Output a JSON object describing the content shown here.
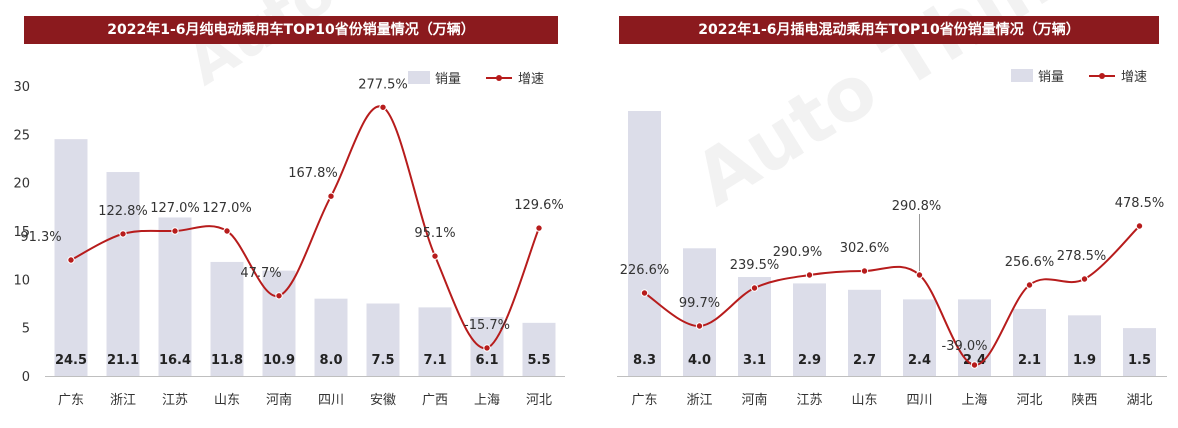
{
  "watermark": "Auto Thinker",
  "charts": [
    {
      "title": "2022年1-6月纯电动乘用车TOP10省份销量情况（万辆）",
      "legend": {
        "bar": "销量",
        "line": "增速"
      }
    },
    {
      "title": "2022年1-6月插电混动乘用车TOP10省份销量情况（万辆）",
      "legend": {
        "bar": "销量",
        "line": "增速"
      }
    }
  ],
  "chart_data": [
    {
      "type": "bar",
      "title": "2022年1-6月纯电动乘用车TOP10省份销量情况（万辆）",
      "categories": [
        "广东",
        "浙江",
        "江苏",
        "山东",
        "河南",
        "四川",
        "安徽",
        "广西",
        "上海",
        "河北"
      ],
      "series": [
        {
          "name": "销量",
          "type": "bar",
          "values": [
            24.5,
            21.1,
            16.4,
            11.8,
            10.9,
            8.0,
            7.5,
            7.1,
            6.1,
            5.5
          ],
          "labels": [
            "24.5",
            "21.1",
            "16.4",
            "11.8",
            "10.9",
            "8.0",
            "7.5",
            "7.1",
            "6.1",
            "5.5"
          ]
        },
        {
          "name": "增速",
          "type": "line",
          "values": [
            91.3,
            122.8,
            127.0,
            127.0,
            47.7,
            167.8,
            277.5,
            95.1,
            -15.7,
            129.6
          ],
          "labels": [
            "91.3%",
            "122.8%",
            "127.0%",
            "127.0%",
            "47.7%",
            "167.8%",
            "277.5%",
            "95.1%",
            "-15.7%",
            "129.6%"
          ],
          "plot_values": [
            12.0,
            14.7,
            15.0,
            15.0,
            8.3,
            18.6,
            27.8,
            12.4,
            2.9,
            15.3
          ]
        }
      ],
      "yticks": [
        "0",
        "5",
        "10",
        "15",
        "20",
        "25",
        "30"
      ],
      "ylim": [
        0,
        30
      ],
      "bar_color": "#dcdde9",
      "line_color": "#b71c1c",
      "legend_position": "top-right"
    },
    {
      "type": "bar",
      "title": "2022年1-6月插电混动乘用车TOP10省份销量情况（万辆）",
      "categories": [
        "广东",
        "浙江",
        "河南",
        "江苏",
        "山东",
        "四川",
        "上海",
        "河北",
        "陕西",
        "湖北"
      ],
      "series": [
        {
          "name": "销量",
          "type": "bar",
          "values": [
            8.3,
            4.0,
            3.1,
            2.9,
            2.7,
            2.4,
            2.4,
            2.1,
            1.9,
            1.5
          ],
          "labels": [
            "8.3",
            "4.0",
            "3.1",
            "2.9",
            "2.7",
            "2.4",
            "2.4",
            "2.1",
            "1.9",
            "1.5"
          ]
        },
        {
          "name": "增速",
          "type": "line",
          "values": [
            226.6,
            99.7,
            239.5,
            290.9,
            302.6,
            290.8,
            -39.0,
            256.6,
            278.5,
            478.5
          ],
          "labels": [
            "226.6%",
            "99.7%",
            "239.5%",
            "290.9%",
            "302.6%",
            "290.8%",
            "-39.0%",
            "256.6%",
            "278.5%",
            "478.5%"
          ]
        }
      ],
      "ylim": [
        0,
        8.3
      ],
      "bar_color": "#dcdde9",
      "line_color": "#b71c1c",
      "legend_position": "top-right"
    }
  ]
}
